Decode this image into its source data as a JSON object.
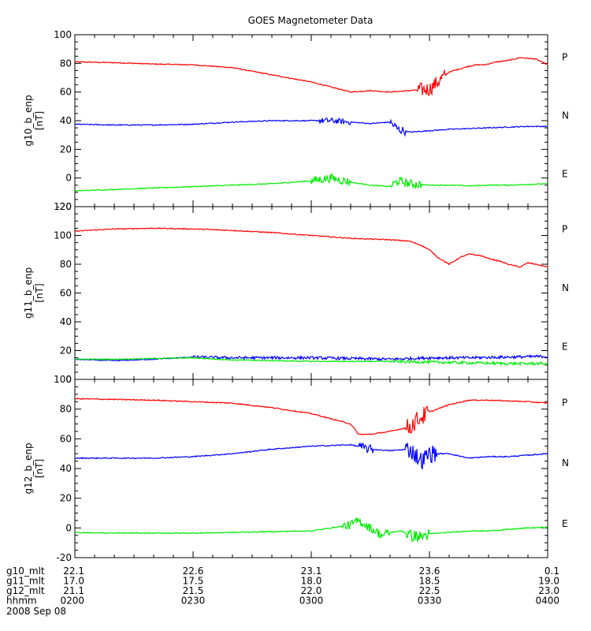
{
  "chart_data": {
    "type": "line",
    "title": "GOES Magnetometer Data",
    "x_range": [
      "0200",
      "0400"
    ],
    "panels": [
      {
        "ylabel": "g10_b_enp",
        "unit": "[nT]",
        "ylim": [
          -20,
          100
        ],
        "yticks": [
          -20,
          0,
          20,
          40,
          60,
          80,
          100
        ],
        "series": [
          {
            "name": "P",
            "color": "#ff0000",
            "minutes": [
              0,
              10,
              20,
              30,
              40,
              50,
              60,
              70,
              75,
              80,
              85,
              90,
              95,
              100,
              102,
              104,
              107,
              110,
              113,
              117,
              120
            ],
            "values": [
              81,
              80.5,
              79.5,
              79,
              77,
              72,
              67,
              60,
              61,
              60,
              61,
              62,
              74,
              78,
              79,
              79,
              81,
              82,
              84,
              83,
              79
            ]
          },
          {
            "name": "N",
            "color": "#0000ff",
            "minutes": [
              0,
              10,
              20,
              30,
              40,
              50,
              60,
              65,
              70,
              75,
              80,
              82,
              85,
              90,
              95,
              100,
              105,
              110,
              115,
              120
            ],
            "values": [
              37.5,
              37,
              37,
              37.5,
              39,
              40,
              40,
              40,
              39,
              38,
              39,
              34,
              32,
              33,
              34,
              34.5,
              35,
              35.5,
              36,
              36
            ]
          },
          {
            "name": "E",
            "color": "#00ee00",
            "minutes": [
              0,
              10,
              20,
              30,
              40,
              50,
              60,
              65,
              70,
              75,
              80,
              82,
              85,
              90,
              95,
              100,
              105,
              110,
              115,
              120
            ],
            "values": [
              -9,
              -8,
              -7,
              -6,
              -5,
              -4,
              -2,
              0,
              -3,
              -5,
              -6,
              -2,
              -4,
              -5,
              -5,
              -5.5,
              -5,
              -5,
              -4.5,
              -4
            ]
          }
        ],
        "noise": [
          {
            "series": 0,
            "from": 87,
            "to": 94,
            "amp": 5
          },
          {
            "series": 1,
            "from": 62,
            "to": 70,
            "amp": 2
          },
          {
            "series": 1,
            "from": 80,
            "to": 84,
            "amp": 3
          },
          {
            "series": 2,
            "from": 60,
            "to": 70,
            "amp": 3
          },
          {
            "series": 2,
            "from": 80,
            "to": 88,
            "amp": 3
          }
        ]
      },
      {
        "ylabel": "g11_b_enp",
        "unit": "[nT]",
        "ylim": [
          0,
          120
        ],
        "yticks": [
          0,
          20,
          40,
          60,
          80,
          100,
          120
        ],
        "series": [
          {
            "name": "P",
            "color": "#ff0000",
            "minutes": [
              0,
              10,
              20,
              30,
              40,
              50,
              60,
              70,
              80,
              85,
              88,
              90,
              92,
              95,
              98,
              100,
              103,
              105,
              108,
              110,
              113,
              115,
              117,
              120
            ],
            "values": [
              103,
              104.5,
              105,
              104.5,
              103.5,
              102,
              100,
              98,
              97,
              96,
              93,
              90,
              85,
              80,
              85,
              87,
              86,
              84,
              82,
              80,
              78,
              81,
              80,
              78
            ]
          },
          {
            "name": "N",
            "color": "#0000ff",
            "minutes": [
              0,
              10,
              20,
              30,
              40,
              50,
              60,
              70,
              80,
              90,
              100,
              110,
              120
            ],
            "values": [
              14,
              13,
              14,
              15.5,
              15,
              15,
              15,
              14.5,
              14,
              15,
              15,
              15.5,
              16
            ]
          },
          {
            "name": "E",
            "color": "#00ee00",
            "minutes": [
              0,
              10,
              20,
              30,
              40,
              50,
              60,
              70,
              80,
              90,
              100,
              110,
              120
            ],
            "values": [
              14,
              14,
              14.5,
              15,
              13.5,
              13,
              12.5,
              12.5,
              12.5,
              12,
              11.5,
              11,
              11
            ]
          }
        ],
        "noise": [
          {
            "series": 1,
            "from": 30,
            "to": 120,
            "amp": 1
          },
          {
            "series": 2,
            "from": 80,
            "to": 120,
            "amp": 1
          }
        ]
      },
      {
        "ylabel": "g12_b_enp",
        "unit": "[nT]",
        "ylim": [
          -20,
          100
        ],
        "yticks": [
          -20,
          0,
          20,
          40,
          60,
          80,
          100
        ],
        "series": [
          {
            "name": "P",
            "color": "#ff0000",
            "minutes": [
              0,
              10,
              20,
              30,
              40,
              50,
              60,
              70,
              72,
              75,
              80,
              85,
              87,
              90,
              95,
              100,
              105,
              110,
              115,
              120
            ],
            "values": [
              87,
              86.5,
              86,
              85,
              84,
              81,
              77,
              70,
              63,
              63,
              65,
              68,
              73,
              78,
              83,
              86,
              86,
              85.5,
              85,
              84
            ]
          },
          {
            "name": "N",
            "color": "#0000ff",
            "minutes": [
              0,
              10,
              20,
              30,
              40,
              50,
              60,
              70,
              75,
              80,
              85,
              88,
              90,
              95,
              100,
              105,
              110,
              115,
              120
            ],
            "values": [
              47,
              47,
              47,
              48,
              50,
              53,
              55,
              56,
              53,
              52,
              53,
              45,
              50,
              50,
              47,
              48,
              48,
              49,
              50
            ]
          },
          {
            "name": "E",
            "color": "#00ee00",
            "minutes": [
              0,
              10,
              20,
              30,
              40,
              50,
              60,
              70,
              72,
              75,
              78,
              80,
              83,
              85,
              88,
              90,
              95,
              100,
              105,
              110,
              115,
              120
            ],
            "values": [
              -3,
              -3.5,
              -3.5,
              -3.5,
              -3,
              -2.5,
              -2,
              2,
              5,
              0,
              -5,
              -3,
              -2,
              -5,
              -6,
              -4,
              -3,
              -2,
              -2,
              -1,
              0,
              0.5
            ]
          }
        ],
        "noise": [
          {
            "series": 0,
            "from": 84,
            "to": 90,
            "amp": 6
          },
          {
            "series": 1,
            "from": 72,
            "to": 76,
            "amp": 3
          },
          {
            "series": 1,
            "from": 84,
            "to": 92,
            "amp": 6
          },
          {
            "series": 2,
            "from": 68,
            "to": 80,
            "amp": 3
          },
          {
            "series": 2,
            "from": 84,
            "to": 90,
            "amp": 4
          }
        ]
      }
    ],
    "time_axis": {
      "rows": [
        {
          "label": "g10_mlt",
          "values": [
            "22.1",
            "22.6",
            "23.1",
            "23.6",
            "0.1"
          ]
        },
        {
          "label": "g11_mlt",
          "values": [
            "17.0",
            "17.5",
            "18.0",
            "18.5",
            "19.0"
          ]
        },
        {
          "label": "g12_mlt",
          "values": [
            "21.1",
            "21.5",
            "22.0",
            "22.5",
            "23.0"
          ]
        },
        {
          "label": "hhmm",
          "values": [
            "0200",
            "0230",
            "0300",
            "0330",
            "0400"
          ]
        }
      ],
      "date": "2008 Sep 08"
    }
  }
}
